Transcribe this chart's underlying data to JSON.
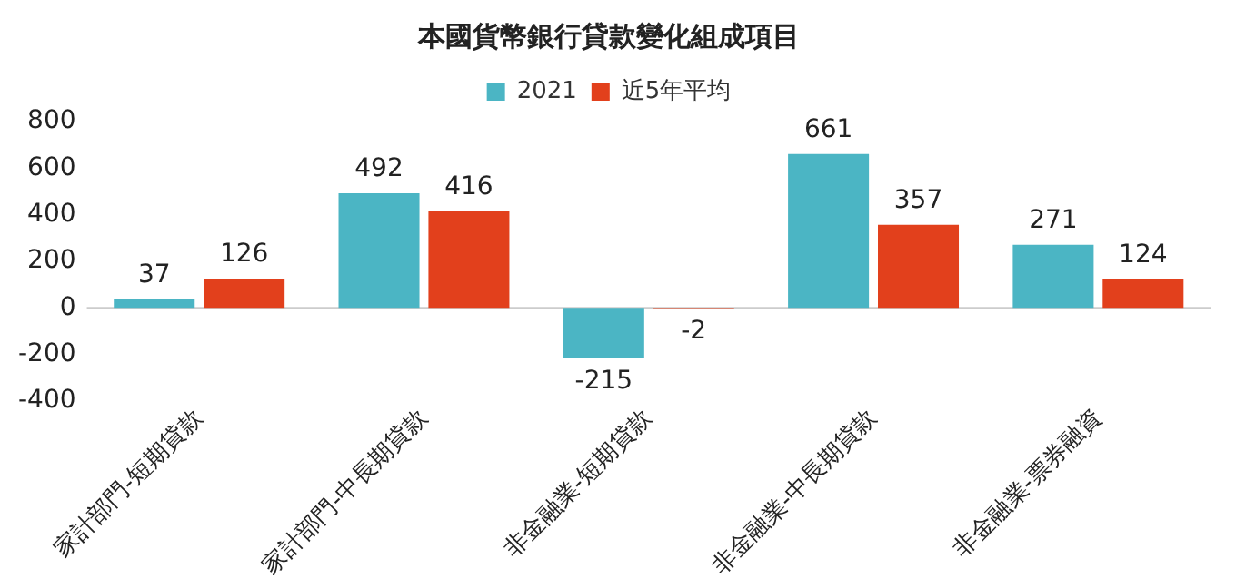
{
  "chart_data": {
    "type": "bar",
    "title": "本國貨幣銀行貸款變化組成項目",
    "categories": [
      "家計部門-短期貸款",
      "家計部門-中長期貸款",
      "非金融業-短期貸款",
      "非金融業-中長期貸款",
      "非金融業-票券融資"
    ],
    "series": [
      {
        "name": "2021",
        "color": "#4bb5c4",
        "values": [
          37,
          492,
          -215,
          661,
          271
        ]
      },
      {
        "name": "近5年平均",
        "color": "#e2401c",
        "values": [
          126,
          416,
          -2,
          357,
          124
        ]
      }
    ],
    "ylim": [
      -400,
      800
    ],
    "yticks": [
      -400,
      -200,
      0,
      200,
      400,
      600,
      800
    ],
    "grid": false,
    "ref_lines": [
      {
        "axis": "y",
        "value": 0,
        "color": "#cccccc"
      }
    ],
    "legend": "top",
    "data_labels": true
  }
}
